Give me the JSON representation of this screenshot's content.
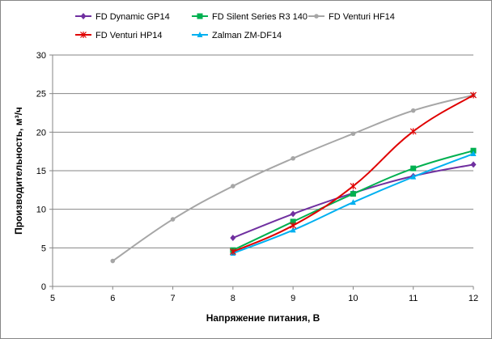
{
  "chart_data": {
    "type": "line",
    "title": "",
    "xlabel": "Напряжение питания, В",
    "ylabel": "Производительность, м³/ч",
    "xlim": [
      5,
      12
    ],
    "ylim": [
      0,
      30
    ],
    "x_ticks": [
      5,
      6,
      7,
      8,
      9,
      10,
      11,
      12
    ],
    "y_ticks": [
      0,
      5,
      10,
      15,
      20,
      25,
      30
    ],
    "grid": "horizontal",
    "legend_position": "top",
    "series": [
      {
        "name": "FD Dynamic  GP14",
        "color": "#7030A0",
        "marker": "diamond",
        "x": [
          8,
          9,
          10,
          11,
          12
        ],
        "values": [
          6.3,
          9.4,
          12.1,
          14.3,
          15.8
        ]
      },
      {
        "name": "FD Silent Series R3 140",
        "color": "#00B050",
        "marker": "square",
        "x": [
          8,
          9,
          10,
          11,
          12
        ],
        "values": [
          4.7,
          8.4,
          12.0,
          15.3,
          17.6
        ]
      },
      {
        "name": "FD Venturi  HF14",
        "color": "#A6A6A6",
        "marker": "circle",
        "x": [
          6,
          7,
          8,
          9,
          10,
          11,
          12
        ],
        "values": [
          3.3,
          8.7,
          13.0,
          16.6,
          19.8,
          22.8,
          24.8
        ]
      },
      {
        "name": "FD Venturi  HP14",
        "color": "#E00000",
        "marker": "star",
        "x": [
          8,
          9,
          10,
          11,
          12
        ],
        "values": [
          4.5,
          7.9,
          13.0,
          20.1,
          24.8
        ]
      },
      {
        "name": "Zalman ZM-DF14",
        "color": "#00B0F0",
        "marker": "triangle",
        "x": [
          8,
          9,
          10,
          11,
          12
        ],
        "values": [
          4.3,
          7.3,
          10.9,
          14.2,
          17.2
        ]
      }
    ]
  }
}
